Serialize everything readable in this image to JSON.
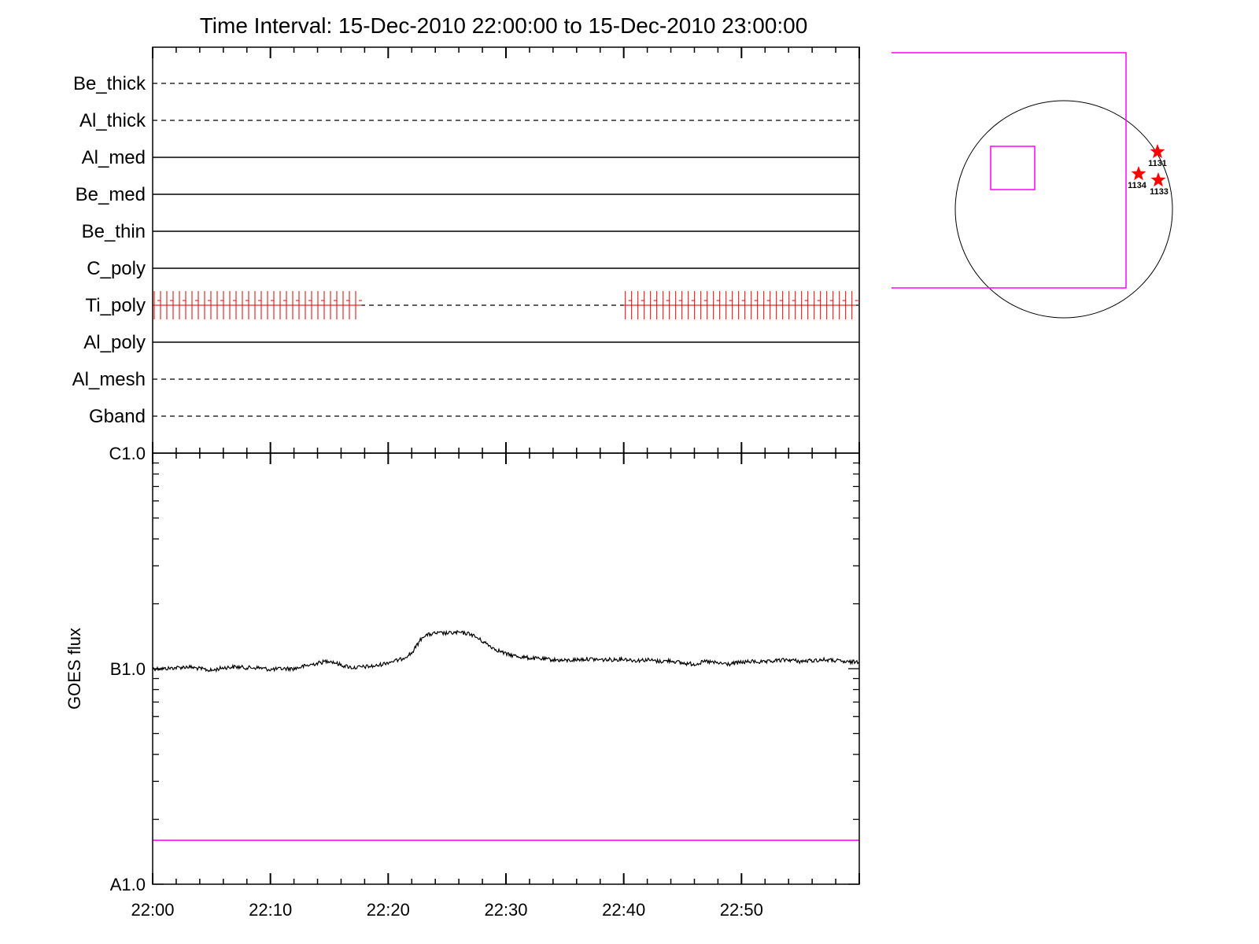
{
  "title": "Time Interval: 15-Dec-2010 22:00:00 to 15-Dec-2010 23:00:00",
  "colors": {
    "axis": "#000000",
    "goes_curve": "#000000",
    "threshold": "#ff00ff",
    "attenuator": "#e00000",
    "fov": "#ff00ff",
    "active_region": "#ff0000",
    "background": "#ffffff"
  },
  "chart_data": [
    {
      "type": "timeline",
      "name": "filter_timeline",
      "x_range": [
        "22:00",
        "23:00"
      ],
      "rows": [
        {
          "label": "Be_thick",
          "style": "dashed"
        },
        {
          "label": "Al_thick",
          "style": "dashed"
        },
        {
          "label": "Al_med",
          "style": "solid"
        },
        {
          "label": "Be_med",
          "style": "solid"
        },
        {
          "label": "Be_thin",
          "style": "solid"
        },
        {
          "label": "C_poly",
          "style": "solid"
        },
        {
          "label": "Ti_poly",
          "style": "dashed",
          "active_intervals": [
            [
              "22:00",
              "22:18"
            ],
            [
              "22:40",
              "23:00"
            ]
          ]
        },
        {
          "label": "Al_poly",
          "style": "solid"
        },
        {
          "label": "Al_mesh",
          "style": "dashed"
        },
        {
          "label": "Gband",
          "style": "dashed"
        }
      ]
    },
    {
      "type": "line",
      "name": "goes_flux",
      "xlabel": "",
      "ylabel": "GOES flux",
      "y_scale": "log",
      "x_ticks": [
        "22:00",
        "22:10",
        "22:20",
        "22:30",
        "22:40",
        "22:50"
      ],
      "x_range_min": [
        0,
        60
      ],
      "y_tick_labels": [
        "C1.0",
        "B1.0",
        "A1.0"
      ],
      "y_tick_values": [
        1e-06,
        1e-07,
        1e-08
      ],
      "ylim": [
        1e-08,
        1e-06
      ],
      "threshold_line": 1.6e-08,
      "series": [
        {
          "x_min": [
            0,
            1,
            2,
            3,
            4,
            5,
            6,
            7,
            8,
            9,
            10,
            11,
            12,
            13,
            14,
            15,
            16,
            17,
            18,
            19,
            20,
            21,
            22,
            23,
            24,
            25,
            26,
            27,
            28,
            29,
            30,
            31,
            32,
            33,
            34,
            35,
            36,
            37,
            38,
            39,
            40,
            41,
            42,
            43,
            44,
            45,
            46,
            47,
            48,
            49,
            50,
            51,
            52,
            53,
            54,
            55,
            56,
            57,
            58,
            59,
            60
          ],
          "y": [
            1e-07,
            1e-07,
            1.01e-07,
            1.02e-07,
            1e-07,
            9.8e-08,
            1.01e-07,
            1.02e-07,
            1.01e-07,
            1.01e-07,
            9.9e-08,
            1e-07,
            1e-07,
            1.03e-07,
            1.06e-07,
            1.09e-07,
            1.04e-07,
            1.01e-07,
            1.02e-07,
            1.03e-07,
            1.07e-07,
            1.1e-07,
            1.18e-07,
            1.42e-07,
            1.46e-07,
            1.46e-07,
            1.47e-07,
            1.45e-07,
            1.34e-07,
            1.24e-07,
            1.17e-07,
            1.14e-07,
            1.12e-07,
            1.11e-07,
            1.1e-07,
            1.09e-07,
            1.1e-07,
            1.11e-07,
            1.1e-07,
            1.1e-07,
            1.11e-07,
            1.09e-07,
            1.1e-07,
            1.08e-07,
            1.09e-07,
            1.06e-07,
            1.05e-07,
            1.08e-07,
            1.06e-07,
            1.05e-07,
            1.07e-07,
            1.08e-07,
            1.07e-07,
            1.09e-07,
            1.1e-07,
            1.08e-07,
            1.09e-07,
            1.1e-07,
            1.09e-07,
            1.07e-07,
            1.08e-07
          ]
        }
      ]
    },
    {
      "type": "diagram",
      "name": "solar_disk",
      "active_regions": [
        {
          "label": "1131"
        },
        {
          "label": "1134"
        },
        {
          "label": "1133"
        }
      ]
    }
  ]
}
